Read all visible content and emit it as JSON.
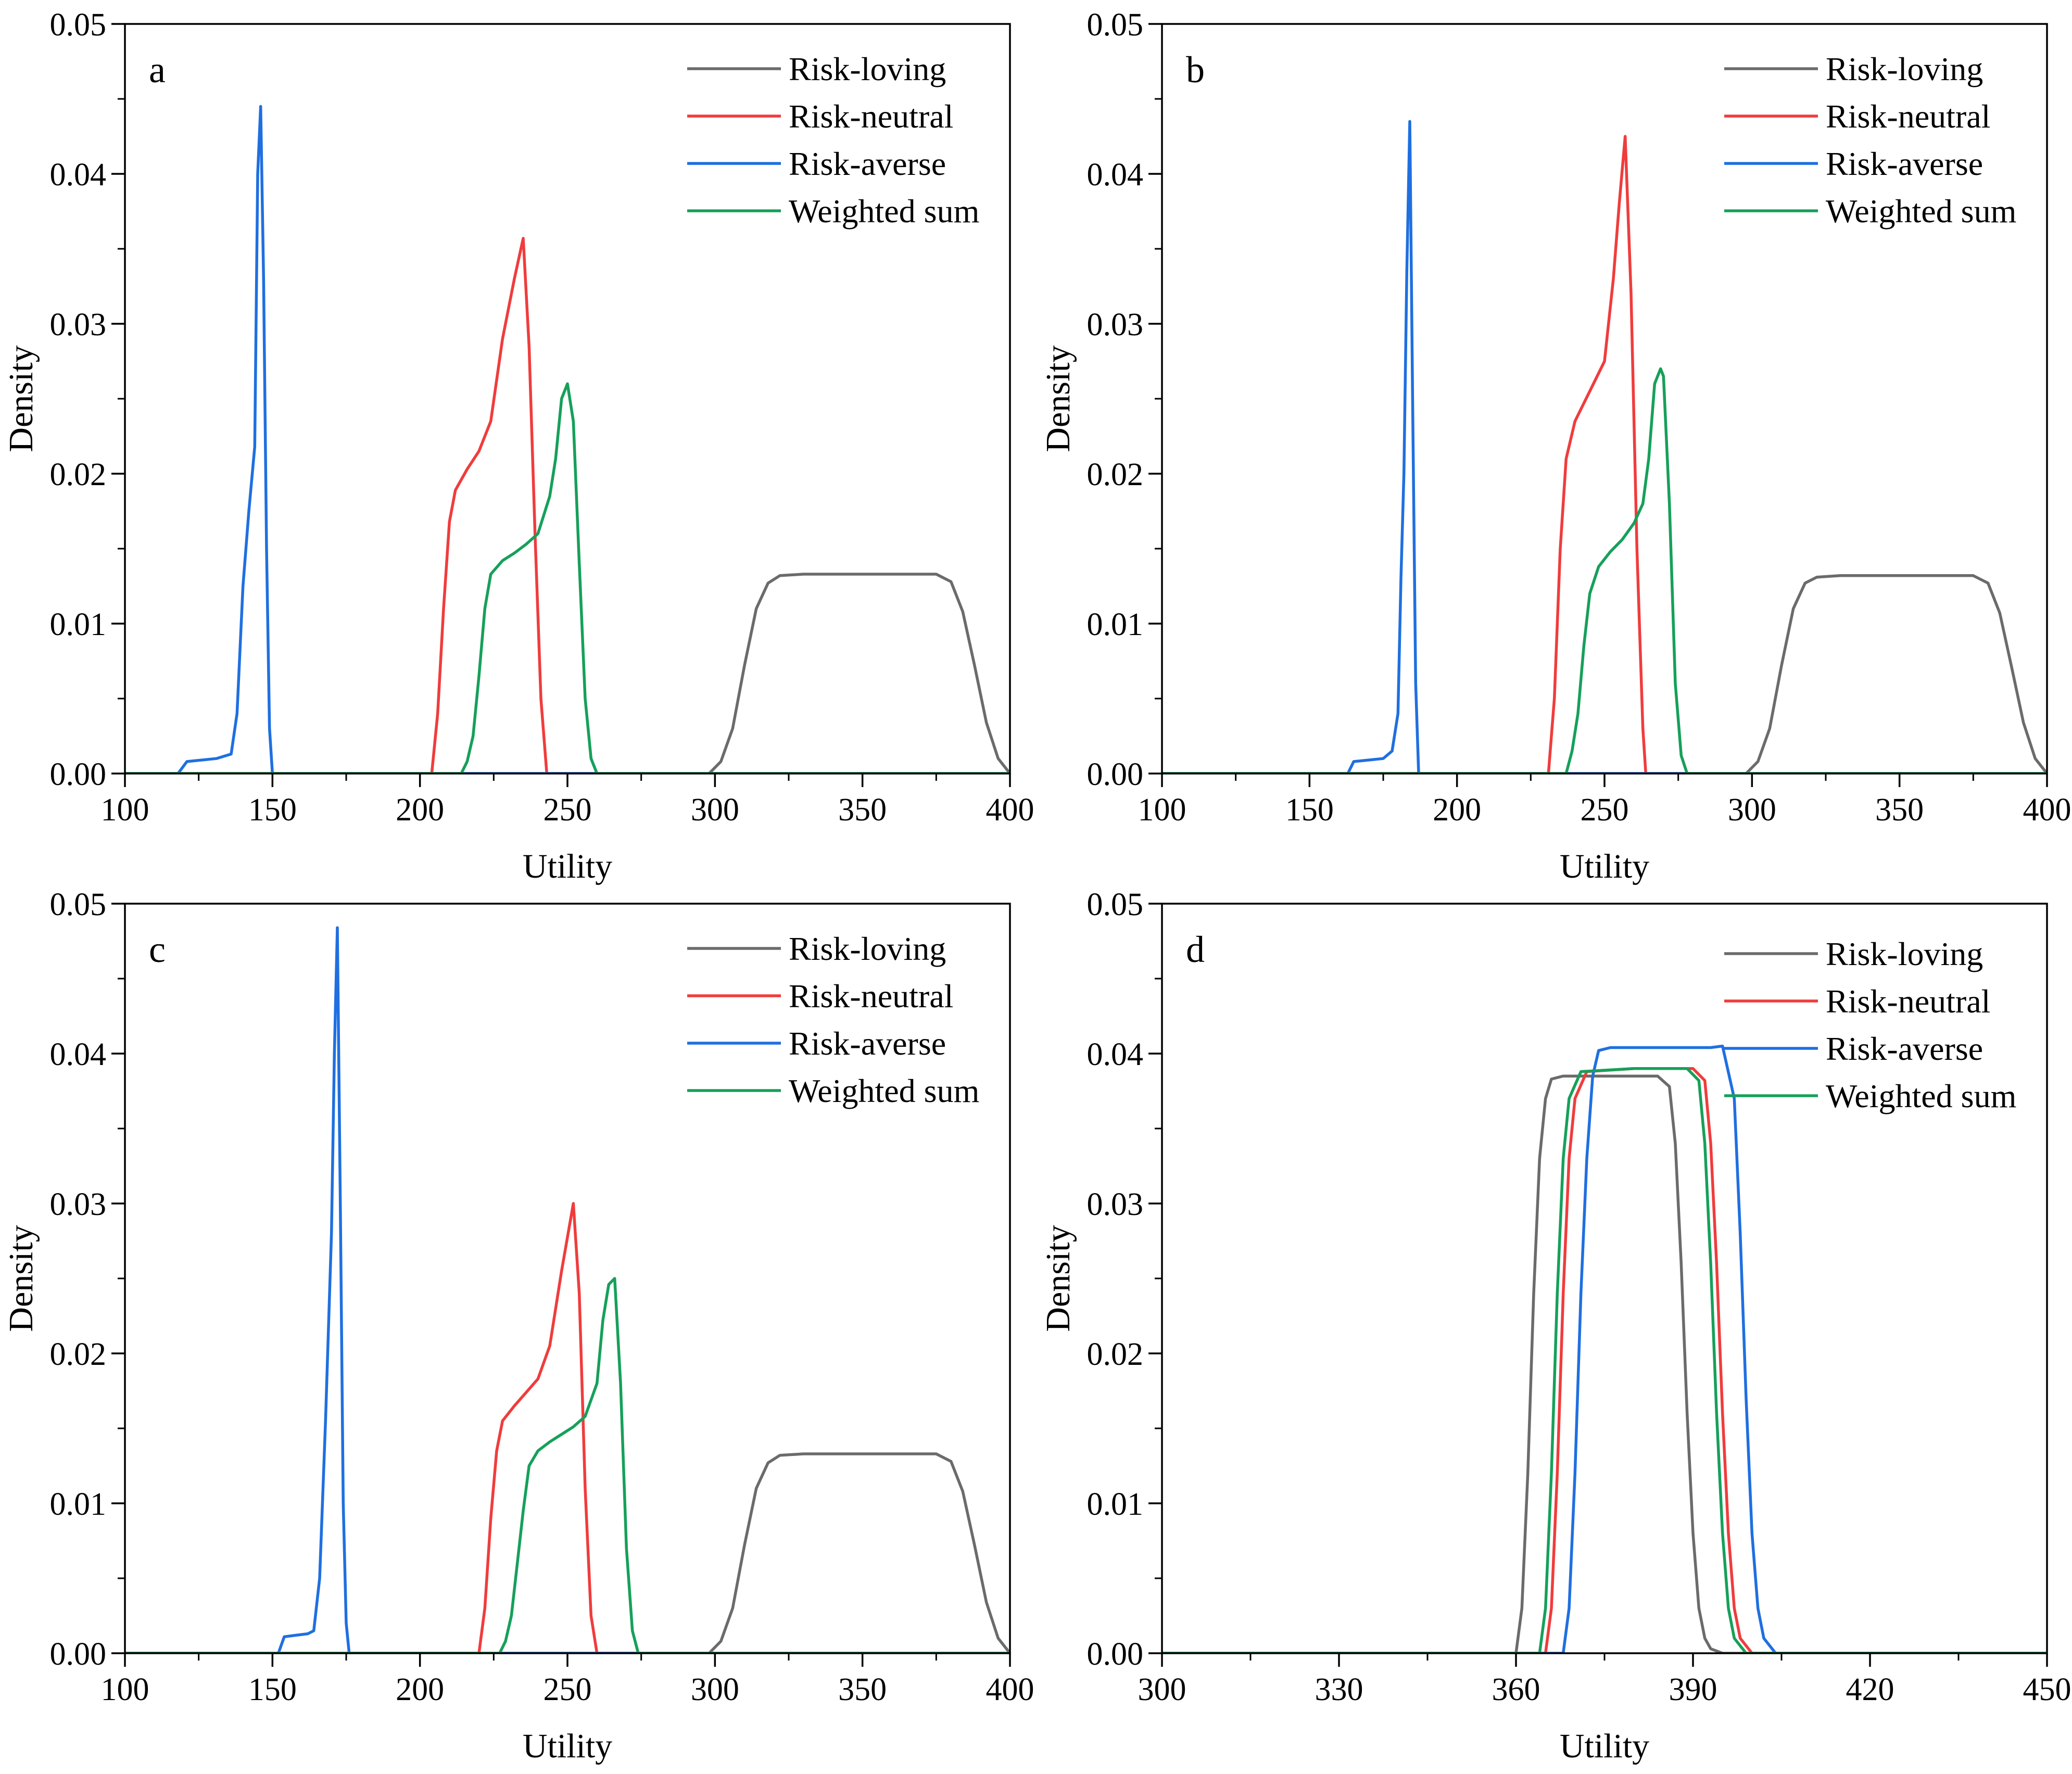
{
  "figure": {
    "legend_position": "top-right"
  },
  "colors": {
    "Risk-loving": "#6b6b6b",
    "Risk-neutral": "#f03c3c",
    "Risk-averse": "#1f6fe0",
    "Weighted sum": "#16a05a"
  },
  "chart_data": [
    {
      "type": "line",
      "panel": "a",
      "xlabel": "Utility",
      "ylabel": "Density",
      "xlim": [
        100,
        400
      ],
      "ylim": [
        0,
        0.05
      ],
      "xticks": [
        100,
        150,
        200,
        250,
        300,
        350,
        400
      ],
      "xtick_labels": [
        "100",
        "150",
        "200",
        "250",
        "300",
        "350",
        "400"
      ],
      "yticks": [
        0,
        0.01,
        0.02,
        0.03,
        0.04,
        0.05
      ],
      "ytick_labels": [
        "0.00",
        "0.01",
        "0.02",
        "0.03",
        "0.04",
        "0.05"
      ],
      "legend": [
        "Risk-loving",
        "Risk-neutral",
        "Risk-averse",
        "Weighted sum"
      ],
      "series": [
        {
          "name": "Risk-loving",
          "x": [
            298,
            302,
            306,
            310,
            314,
            318,
            322,
            330,
            350,
            370,
            375,
            380,
            384,
            388,
            392,
            396,
            400
          ],
          "y": [
            0,
            0.0008,
            0.003,
            0.0072,
            0.011,
            0.0127,
            0.0132,
            0.0133,
            0.0133,
            0.0133,
            0.0133,
            0.0128,
            0.0108,
            0.0072,
            0.0034,
            0.001,
            0
          ]
        },
        {
          "name": "Risk-neutral",
          "x": [
            204,
            206,
            208,
            210,
            212,
            216,
            220,
            224,
            228,
            232,
            235,
            237,
            239,
            241,
            243
          ],
          "y": [
            0,
            0.004,
            0.011,
            0.0168,
            0.0189,
            0.0203,
            0.0215,
            0.0235,
            0.029,
            0.033,
            0.0357,
            0.0285,
            0.016,
            0.005,
            0
          ]
        },
        {
          "name": "Risk-averse",
          "x": [
            118,
            121,
            126,
            131,
            136,
            138,
            140,
            142,
            144,
            145,
            146,
            147,
            148,
            149,
            150
          ],
          "y": [
            0,
            0.0008,
            0.0009,
            0.001,
            0.0013,
            0.004,
            0.0125,
            0.0175,
            0.0218,
            0.04,
            0.0445,
            0.033,
            0.015,
            0.003,
            0
          ]
        },
        {
          "name": "Weighted sum",
          "x": [
            214,
            216,
            218,
            220,
            222,
            224,
            228,
            232,
            236,
            240,
            244,
            246,
            248,
            250,
            252,
            254,
            256,
            258,
            260
          ],
          "y": [
            0,
            0.0008,
            0.0025,
            0.0065,
            0.011,
            0.0133,
            0.0142,
            0.0147,
            0.0153,
            0.016,
            0.0185,
            0.021,
            0.025,
            0.026,
            0.0235,
            0.014,
            0.005,
            0.001,
            0
          ]
        }
      ]
    },
    {
      "type": "line",
      "panel": "b",
      "xlabel": "Utility",
      "ylabel": "Density",
      "xlim": [
        100,
        400
      ],
      "ylim": [
        0,
        0.05
      ],
      "xticks": [
        100,
        150,
        200,
        250,
        300,
        350,
        400
      ],
      "xtick_labels": [
        "100",
        "150",
        "200",
        "250",
        "300",
        "350",
        "400"
      ],
      "yticks": [
        0,
        0.01,
        0.02,
        0.03,
        0.04,
        0.05
      ],
      "ytick_labels": [
        "0.00",
        "0.01",
        "0.02",
        "0.03",
        "0.04",
        "0.05"
      ],
      "legend": [
        "Risk-loving",
        "Risk-neutral",
        "Risk-averse",
        "Weighted sum"
      ],
      "series": [
        {
          "name": "Risk-loving",
          "x": [
            298,
            302,
            306,
            310,
            314,
            318,
            322,
            330,
            350,
            370,
            375,
            380,
            384,
            388,
            392,
            396,
            400
          ],
          "y": [
            0,
            0.0008,
            0.003,
            0.0072,
            0.011,
            0.0127,
            0.0131,
            0.0132,
            0.0132,
            0.0132,
            0.0132,
            0.0127,
            0.0107,
            0.0071,
            0.0034,
            0.001,
            0
          ]
        },
        {
          "name": "Risk-neutral",
          "x": [
            231,
            233,
            235,
            237,
            240,
            245,
            250,
            253,
            255,
            257,
            259,
            261,
            263,
            264
          ],
          "y": [
            0,
            0.005,
            0.015,
            0.021,
            0.0235,
            0.0255,
            0.0275,
            0.033,
            0.038,
            0.0425,
            0.032,
            0.015,
            0.003,
            0
          ]
        },
        {
          "name": "Risk-averse",
          "x": [
            163,
            165,
            170,
            175,
            178,
            180,
            181,
            182,
            183,
            184,
            185,
            186,
            187
          ],
          "y": [
            0,
            0.0008,
            0.0009,
            0.001,
            0.0015,
            0.004,
            0.013,
            0.02,
            0.0335,
            0.0435,
            0.024,
            0.006,
            0
          ]
        },
        {
          "name": "Weighted sum",
          "x": [
            237,
            239,
            241,
            243,
            245,
            248,
            252,
            256,
            260,
            263,
            265,
            267,
            269,
            270,
            272,
            274,
            276,
            278
          ],
          "y": [
            0,
            0.0015,
            0.004,
            0.0085,
            0.012,
            0.0138,
            0.0148,
            0.0156,
            0.0167,
            0.018,
            0.021,
            0.026,
            0.027,
            0.0265,
            0.018,
            0.006,
            0.0012,
            0
          ]
        }
      ]
    },
    {
      "type": "line",
      "panel": "c",
      "xlabel": "Utility",
      "ylabel": "Density",
      "xlim": [
        100,
        400
      ],
      "ylim": [
        0,
        0.05
      ],
      "xticks": [
        100,
        150,
        200,
        250,
        300,
        350,
        400
      ],
      "xtick_labels": [
        "100",
        "150",
        "200",
        "250",
        "300",
        "350",
        "400"
      ],
      "yticks": [
        0,
        0.01,
        0.02,
        0.03,
        0.04,
        0.05
      ],
      "ytick_labels": [
        "0.00",
        "0.01",
        "0.02",
        "0.03",
        "0.04",
        "0.05"
      ],
      "legend": [
        "Risk-loving",
        "Risk-neutral",
        "Risk-averse",
        "Weighted sum"
      ],
      "series": [
        {
          "name": "Risk-loving",
          "x": [
            298,
            302,
            306,
            310,
            314,
            318,
            322,
            330,
            350,
            370,
            375,
            380,
            384,
            388,
            392,
            396,
            400
          ],
          "y": [
            0,
            0.0008,
            0.003,
            0.0072,
            0.011,
            0.0127,
            0.0132,
            0.0133,
            0.0133,
            0.0133,
            0.0133,
            0.0128,
            0.0108,
            0.0072,
            0.0034,
            0.001,
            0
          ]
        },
        {
          "name": "Risk-neutral",
          "x": [
            220,
            222,
            224,
            226,
            228,
            232,
            236,
            240,
            244,
            248,
            252,
            254,
            256,
            258,
            260
          ],
          "y": [
            0,
            0.003,
            0.009,
            0.0135,
            0.0155,
            0.0165,
            0.0174,
            0.0183,
            0.0205,
            0.0255,
            0.03,
            0.024,
            0.011,
            0.0025,
            0
          ]
        },
        {
          "name": "Risk-averse",
          "x": [
            152,
            154,
            158,
            162,
            164,
            166,
            168,
            170,
            171,
            172,
            173,
            174,
            175,
            176
          ],
          "y": [
            0,
            0.0011,
            0.0012,
            0.0013,
            0.0015,
            0.005,
            0.0155,
            0.028,
            0.04,
            0.0484,
            0.03,
            0.01,
            0.002,
            0
          ]
        },
        {
          "name": "Weighted sum",
          "x": [
            227,
            229,
            231,
            233,
            235,
            237,
            240,
            244,
            248,
            252,
            256,
            260,
            262,
            264,
            266,
            268,
            270,
            272,
            274
          ],
          "y": [
            0,
            0.0008,
            0.0025,
            0.006,
            0.0095,
            0.0125,
            0.0135,
            0.0141,
            0.0146,
            0.0151,
            0.0158,
            0.018,
            0.0222,
            0.0246,
            0.025,
            0.018,
            0.007,
            0.0015,
            0
          ]
        }
      ]
    },
    {
      "type": "line",
      "panel": "d",
      "xlabel": "Utility",
      "ylabel": "Density",
      "xlim": [
        300,
        450
      ],
      "ylim": [
        0,
        0.05
      ],
      "xticks": [
        300,
        330,
        360,
        390,
        420,
        450
      ],
      "xtick_labels": [
        "300",
        "330",
        "360",
        "390",
        "420",
        "450"
      ],
      "yticks": [
        0,
        0.01,
        0.02,
        0.03,
        0.04,
        0.05
      ],
      "ytick_labels": [
        "0.00",
        "0.01",
        "0.02",
        "0.03",
        "0.04",
        "0.05"
      ],
      "legend": [
        "Risk-loving",
        "Risk-neutral",
        "Risk-averse",
        "Weighted sum"
      ],
      "series": [
        {
          "name": "Risk-loving",
          "x": [
            360,
            361,
            362,
            363,
            364,
            365,
            366,
            368,
            375,
            384,
            386,
            387,
            388,
            389,
            390,
            391,
            392,
            393,
            395
          ],
          "y": [
            0,
            0.003,
            0.012,
            0.024,
            0.033,
            0.037,
            0.0383,
            0.0385,
            0.0385,
            0.0385,
            0.0378,
            0.034,
            0.026,
            0.016,
            0.008,
            0.003,
            0.001,
            0.0003,
            0
          ]
        },
        {
          "name": "Risk-neutral",
          "x": [
            365,
            366,
            367,
            368,
            369,
            370,
            372,
            380,
            390,
            392,
            393,
            394,
            395,
            396,
            397,
            398,
            400
          ],
          "y": [
            0,
            0.003,
            0.012,
            0.024,
            0.033,
            0.037,
            0.0388,
            0.039,
            0.039,
            0.0382,
            0.034,
            0.026,
            0.016,
            0.008,
            0.003,
            0.001,
            0
          ]
        },
        {
          "name": "Risk-averse",
          "x": [
            368,
            369,
            370,
            371,
            372,
            373,
            374,
            376,
            385,
            393,
            395,
            397,
            398,
            399,
            400,
            401,
            402,
            404
          ],
          "y": [
            0,
            0.003,
            0.012,
            0.024,
            0.033,
            0.0385,
            0.0402,
            0.0404,
            0.0404,
            0.0404,
            0.0405,
            0.037,
            0.028,
            0.017,
            0.008,
            0.003,
            0.001,
            0
          ]
        },
        {
          "name": "Weighted sum",
          "x": [
            364,
            365,
            366,
            367,
            368,
            369,
            371,
            380,
            389,
            391,
            392,
            393,
            394,
            395,
            396,
            397,
            399
          ],
          "y": [
            0,
            0.003,
            0.012,
            0.024,
            0.033,
            0.037,
            0.0388,
            0.039,
            0.039,
            0.0382,
            0.034,
            0.026,
            0.016,
            0.008,
            0.003,
            0.001,
            0
          ]
        }
      ]
    }
  ]
}
